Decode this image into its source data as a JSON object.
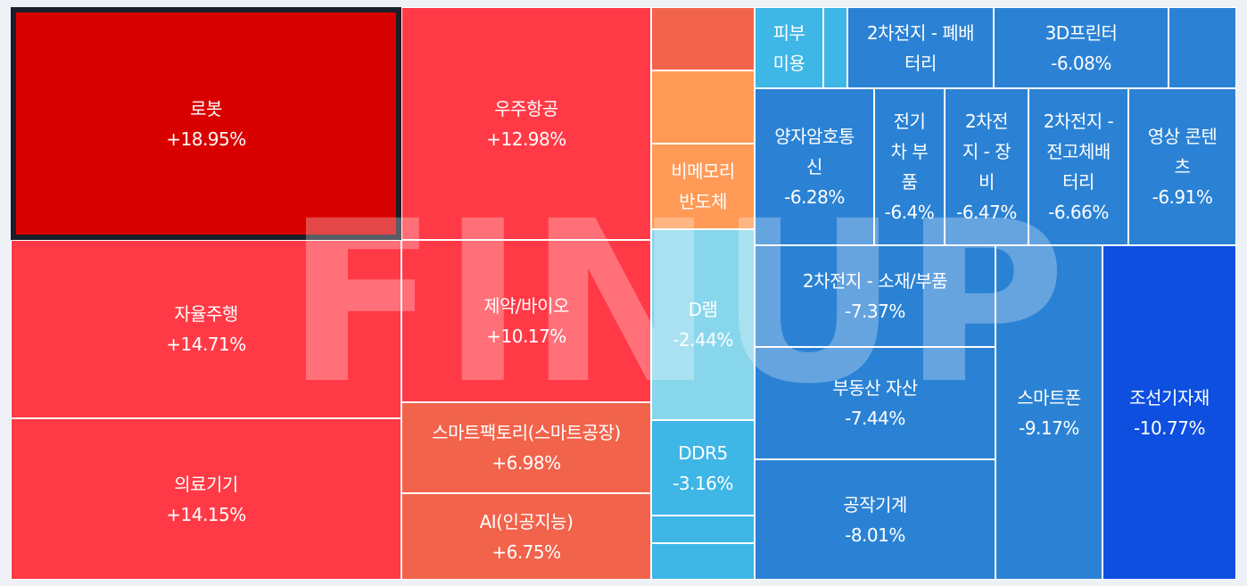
{
  "watermark": "FINUP",
  "chart_data": {
    "type": "treemap",
    "title": "",
    "items": [
      {
        "name": "로봇",
        "lines": [
          "로봇"
        ],
        "value": "+18.95%",
        "color": "#d90000",
        "selected": true
      },
      {
        "name": "자율주행",
        "lines": [
          "자율주행"
        ],
        "value": "+14.71%",
        "color": "#ff3a46"
      },
      {
        "name": "의료기기",
        "lines": [
          "의료기기"
        ],
        "value": "+14.15%",
        "color": "#ff3a46"
      },
      {
        "name": "우주항공",
        "lines": [
          "우주항공"
        ],
        "value": "+12.98%",
        "color": "#ff3a46"
      },
      {
        "name": "제약/바이오",
        "lines": [
          "제약/바이오"
        ],
        "value": "+10.17%",
        "color": "#ff3a46"
      },
      {
        "name": "스마트팩토리(스마트공장)",
        "lines": [
          "스마트팩토리(스마트공장)"
        ],
        "value": "+6.98%",
        "color": "#f2634b"
      },
      {
        "name": "AI(인공지능)",
        "lines": [
          "AI(인공지능)"
        ],
        "value": "+6.75%",
        "color": "#f2634b"
      },
      {
        "name": "",
        "lines": [],
        "value": "",
        "color": "#f2634b"
      },
      {
        "name": "",
        "lines": [],
        "value": "",
        "color": "#ff9a57"
      },
      {
        "name": "비메모리 반도체",
        "lines": [
          "비메모리",
          "반도체"
        ],
        "value": "",
        "color": "#ff9a57"
      },
      {
        "name": "D램",
        "lines": [
          "D램"
        ],
        "value": "-2.44%",
        "color": "#88d6ec"
      },
      {
        "name": "DDR5",
        "lines": [
          "DDR5"
        ],
        "value": "-3.16%",
        "color": "#3eb6e6"
      },
      {
        "name": "",
        "lines": [],
        "value": "",
        "color": "#3eb6e6"
      },
      {
        "name": "",
        "lines": [],
        "value": "",
        "color": "#3eb6e6"
      },
      {
        "name": "피부 미용",
        "lines": [
          "피부",
          "미용"
        ],
        "value": "",
        "color": "#3eb6e6"
      },
      {
        "name": "",
        "lines": [],
        "value": "",
        "color": "#3eb6e6"
      },
      {
        "name": "2차전지 - 폐배터리",
        "lines": [
          "2차전지 - 폐배",
          "터리"
        ],
        "value": "",
        "color": "#2b82d4"
      },
      {
        "name": "3D프린터",
        "lines": [
          "3D프린터"
        ],
        "value": "-6.08%",
        "color": "#2b82d4"
      },
      {
        "name": "",
        "lines": [],
        "value": "",
        "color": "#2b82d4"
      },
      {
        "name": "양자암호통신",
        "lines": [
          "양자암호통",
          "신"
        ],
        "value": "-6.28%",
        "color": "#2b82d4"
      },
      {
        "name": "전기차 부품",
        "lines": [
          "전기",
          "차 부",
          "품"
        ],
        "value": "-6.4%",
        "color": "#2b82d4"
      },
      {
        "name": "2차전지 - 장비",
        "lines": [
          "2차전",
          "지 - 장",
          "비"
        ],
        "value": "-6.47%",
        "color": "#2b82d4"
      },
      {
        "name": "2차전지 - 전고체배터리",
        "lines": [
          "2차전지 -",
          "전고체배",
          "터리"
        ],
        "value": "-6.66%",
        "color": "#2b82d4"
      },
      {
        "name": "영상 콘텐츠",
        "lines": [
          "영상 콘텐",
          "츠"
        ],
        "value": "-6.91%",
        "color": "#2b82d4"
      },
      {
        "name": "2차전지 - 소재/부품",
        "lines": [
          "2차전지 - 소재/부품"
        ],
        "value": "-7.37%",
        "color": "#2b82d4"
      },
      {
        "name": "부동산 자산",
        "lines": [
          "부동산 자산"
        ],
        "value": "-7.44%",
        "color": "#2b82d4"
      },
      {
        "name": "공작기계",
        "lines": [
          "공작기계"
        ],
        "value": "-8.01%",
        "color": "#2b82d4"
      },
      {
        "name": "스마트폰",
        "lines": [
          "스마트폰"
        ],
        "value": "-9.17%",
        "color": "#2b82d4"
      },
      {
        "name": "조선기자재",
        "lines": [
          "조선기자재"
        ],
        "value": "-10.77%",
        "color": "#0e4fe0"
      }
    ]
  }
}
